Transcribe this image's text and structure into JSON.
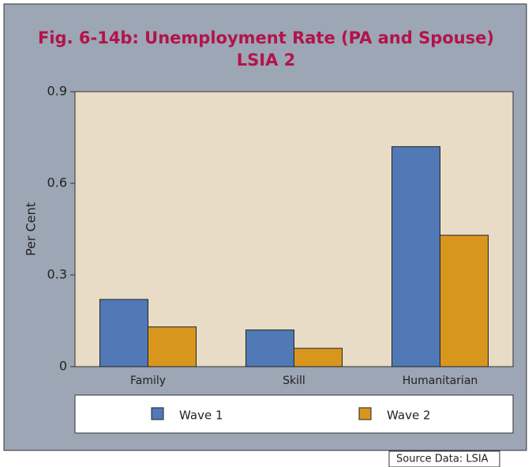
{
  "chart_data": {
    "type": "bar",
    "title": [
      "Fig. 6-14b: Unemployment Rate (PA and Spouse)",
      "LSIA 2"
    ],
    "ylabel": "Per Cent",
    "categories": [
      "Family",
      "Skill",
      "Humanitarian"
    ],
    "series": [
      {
        "name": "Wave 1",
        "color": "#5079b6",
        "values": [
          0.22,
          0.12,
          0.72
        ]
      },
      {
        "name": "Wave 2",
        "color": "#d9961f",
        "values": [
          0.13,
          0.06,
          0.43
        ]
      }
    ],
    "ylim": [
      0,
      0.9
    ],
    "yticks": [
      0,
      0.3,
      0.6,
      0.9
    ],
    "legend": "bottom",
    "source": "Source Data: LSIA"
  }
}
